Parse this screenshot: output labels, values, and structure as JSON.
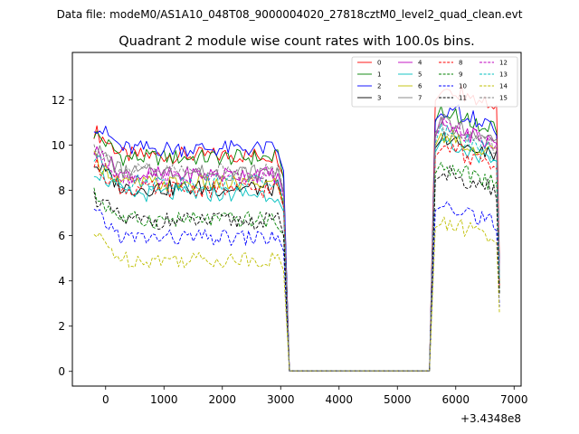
{
  "suptitle": "Data file: modeM0/AS1A10_048T08_9000004020_27818cztM0_level2_quad_clean.evt",
  "chart_data": {
    "type": "line",
    "title": "Quadrant 2 module wise count rates with 100.0s bins.",
    "xlabel": "",
    "ylabel": "",
    "x_offset_label": "+3.4348e8",
    "xlim": [
      -570,
      7120
    ],
    "ylim": [
      -0.65,
      14.1
    ],
    "xticks": [
      0,
      1000,
      2000,
      3000,
      4000,
      5000,
      6000,
      7000
    ],
    "yticks": [
      0,
      2,
      4,
      6,
      8,
      10,
      12
    ],
    "legend_position": "top-right",
    "gap": [
      3050,
      5650
    ],
    "high_start": 5750,
    "series": [
      {
        "name": "0",
        "color": "#ff0000",
        "dash": "solid",
        "base1": 9.55,
        "base2": 12.6
      },
      {
        "name": "1",
        "color": "#008000",
        "dash": "solid",
        "base1": 9.45,
        "base2": 11.6
      },
      {
        "name": "2",
        "color": "#0000ff",
        "dash": "solid",
        "base1": 9.85,
        "base2": 11.7
      },
      {
        "name": "3",
        "color": "#000000",
        "dash": "solid",
        "base1": 8.1,
        "base2": 10.4
      },
      {
        "name": "4",
        "color": "#bf00bf",
        "dash": "solid",
        "base1": 8.7,
        "base2": 10.9
      },
      {
        "name": "5",
        "color": "#00bfbf",
        "dash": "solid",
        "base1": 7.85,
        "base2": 10.2
      },
      {
        "name": "6",
        "color": "#bfbf00",
        "dash": "solid",
        "base1": 8.3,
        "base2": 10.5
      },
      {
        "name": "7",
        "color": "#808080",
        "dash": "solid",
        "base1": 8.8,
        "base2": 11.1
      },
      {
        "name": "8",
        "color": "#ff0000",
        "dash": "dashed",
        "base1": 8.05,
        "base2": 10.0
      },
      {
        "name": "9",
        "color": "#008000",
        "dash": "dashed",
        "base1": 6.7,
        "base2": 9.2
      },
      {
        "name": "10",
        "color": "#0000ff",
        "dash": "dashed",
        "base1": 5.9,
        "base2": 7.5
      },
      {
        "name": "11",
        "color": "#000000",
        "dash": "dashed",
        "base1": 6.65,
        "base2": 8.9
      },
      {
        "name": "12",
        "color": "#bf00bf",
        "dash": "dashed",
        "base1": 8.6,
        "base2": 10.9
      },
      {
        "name": "13",
        "color": "#00bfbf",
        "dash": "dashed",
        "base1": 8.35,
        "base2": 10.6
      },
      {
        "name": "14",
        "color": "#bfbf00",
        "dash": "dashed",
        "base1": 4.95,
        "base2": 6.7
      },
      {
        "name": "15",
        "color": "#808080",
        "dash": "dashed",
        "base1": 8.85,
        "base2": 10.9
      }
    ]
  }
}
